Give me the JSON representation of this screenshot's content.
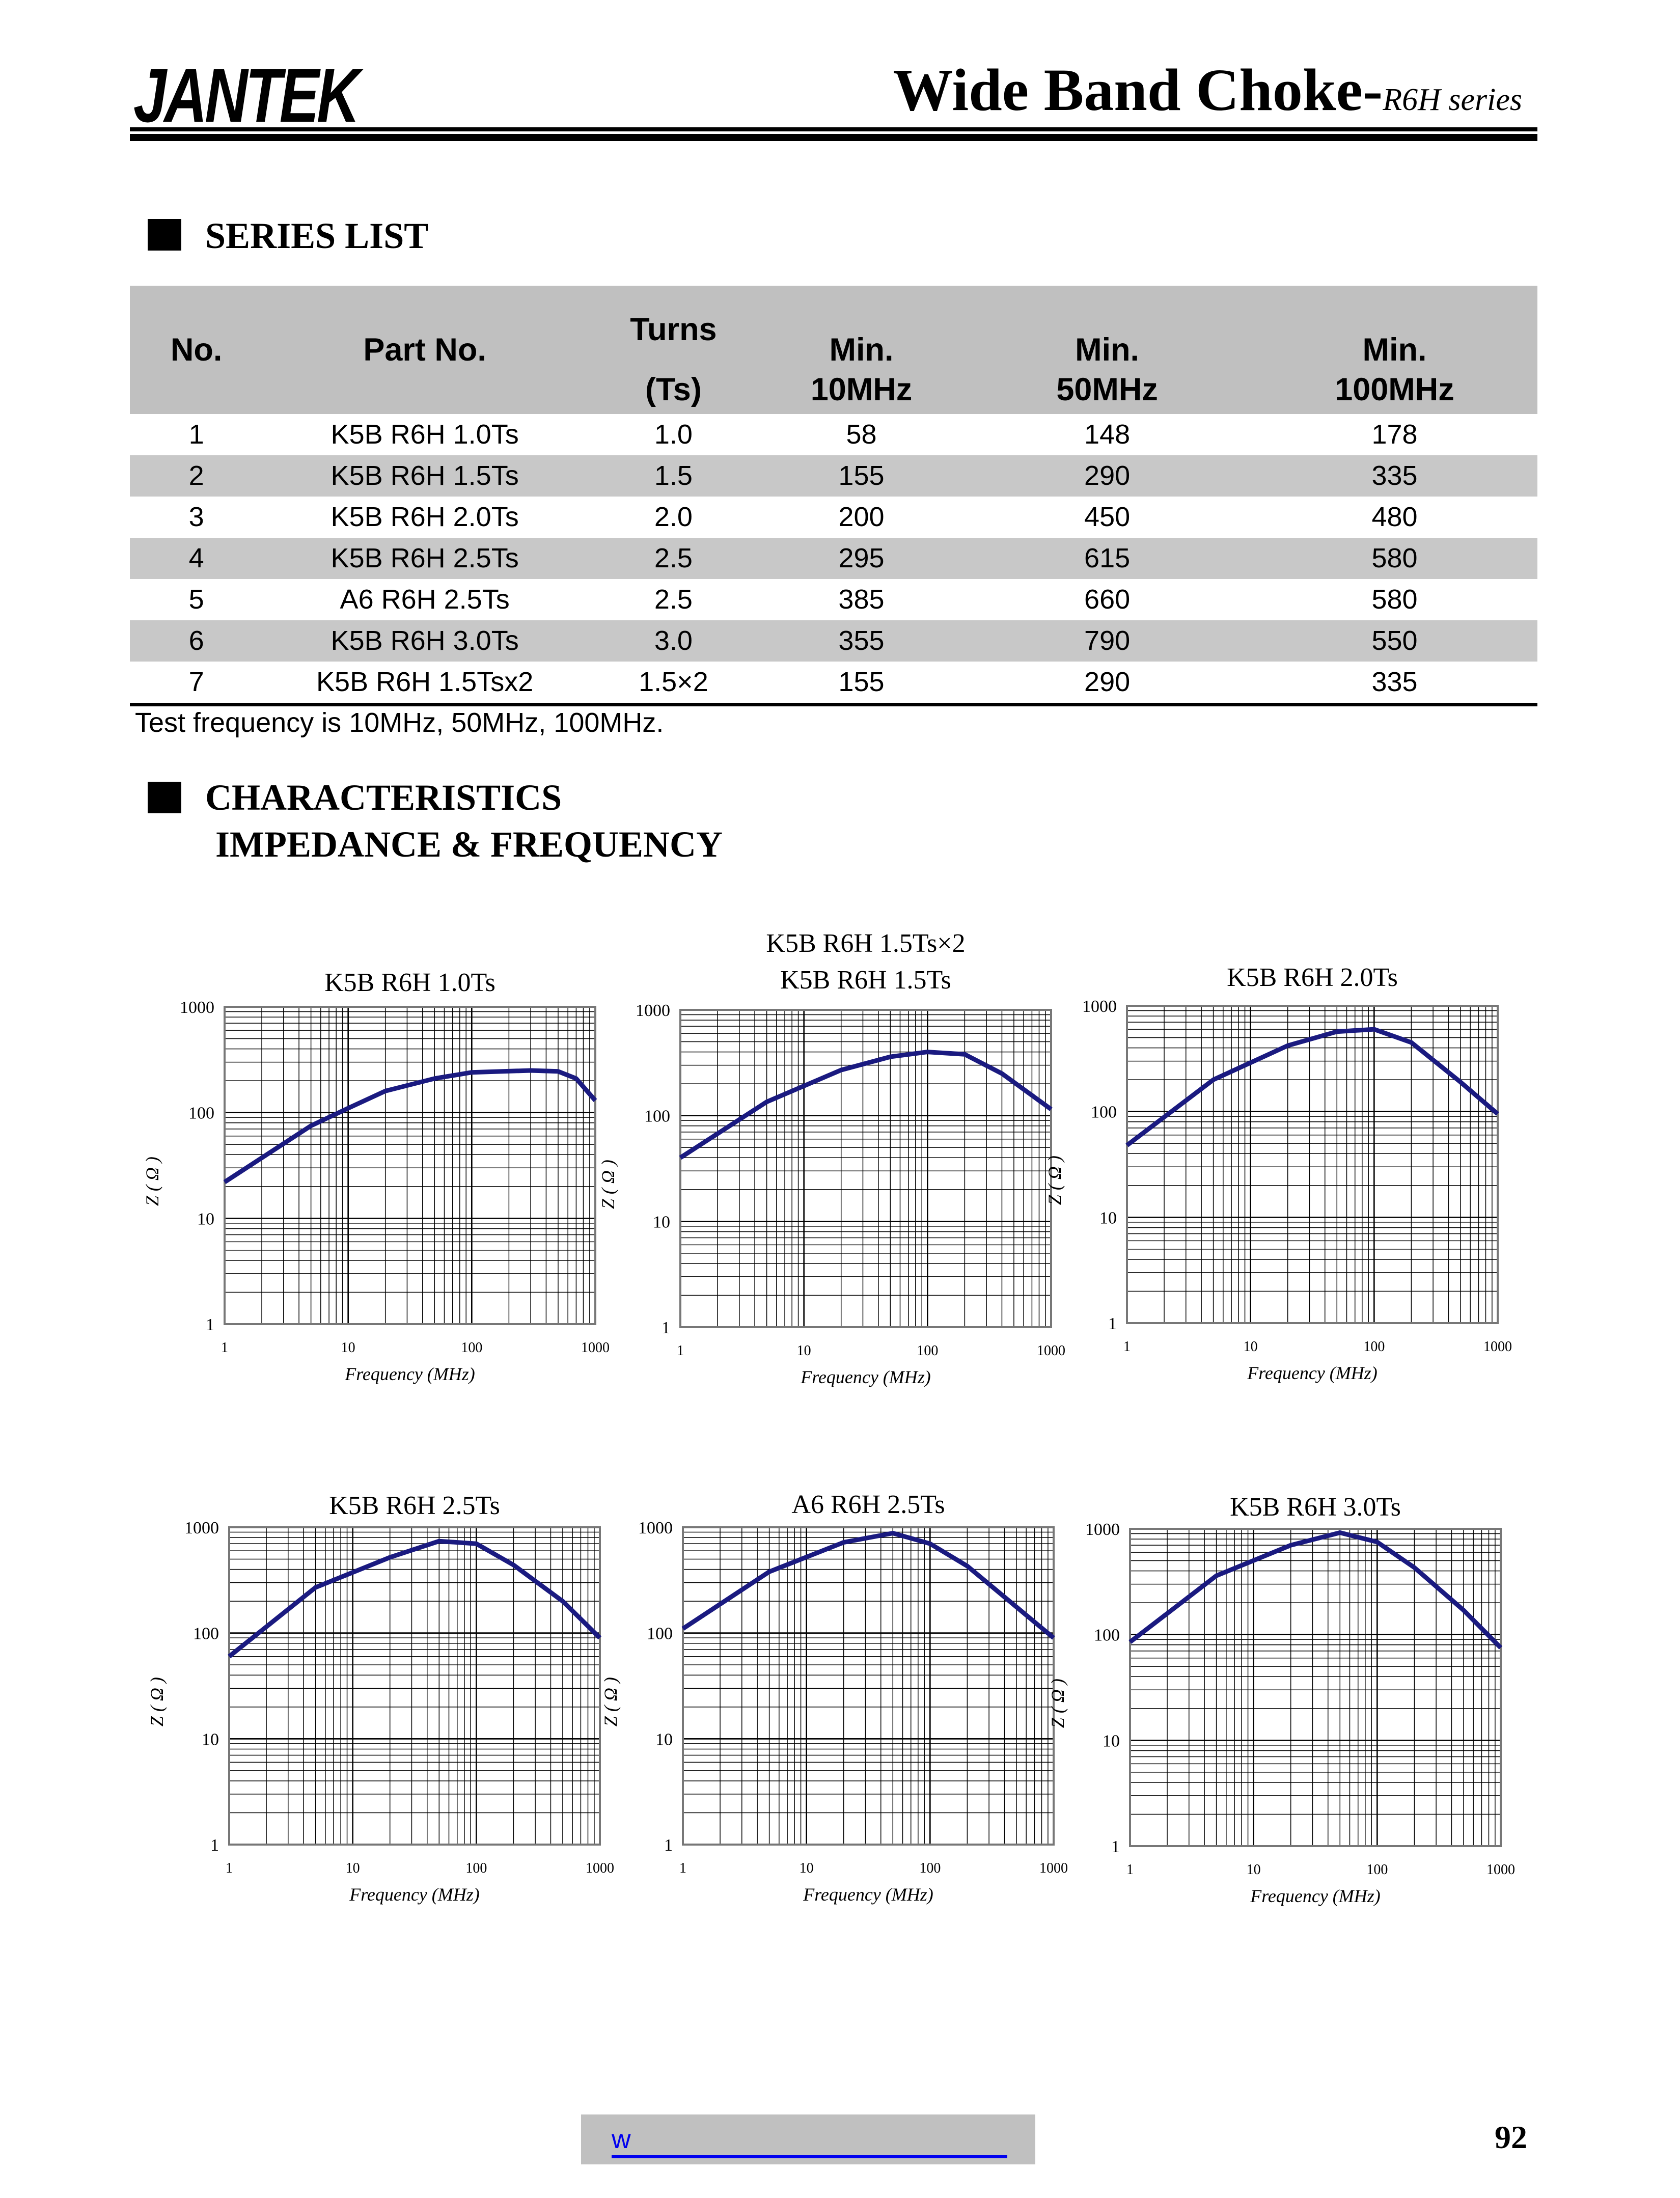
{
  "header": {
    "logo": "JANTEK",
    "title": "Wide Band Choke-",
    "subtitle": "R6H series"
  },
  "series_list": {
    "heading": "SERIES LIST",
    "columns": [
      {
        "l1": "No.",
        "l2": ""
      },
      {
        "l1": "Part No.",
        "l2": ""
      },
      {
        "l1": "Turns",
        "l2": "(Ts)"
      },
      {
        "l1": "Min.",
        "l2": "10MHz"
      },
      {
        "l1": "Min.",
        "l2": "50MHz"
      },
      {
        "l1": "Min.",
        "l2": "100MHz"
      }
    ],
    "rows": [
      [
        "1",
        "K5B R6H 1.0Ts",
        "1.0",
        "58",
        "148",
        "178"
      ],
      [
        "2",
        "K5B R6H 1.5Ts",
        "1.5",
        "155",
        "290",
        "335"
      ],
      [
        "3",
        "K5B R6H 2.0Ts",
        "2.0",
        "200",
        "450",
        "480"
      ],
      [
        "4",
        "K5B R6H 2.5Ts",
        "2.5",
        "295",
        "615",
        "580"
      ],
      [
        "5",
        "A6 R6H 2.5Ts",
        "2.5",
        "385",
        "660",
        "580"
      ],
      [
        "6",
        "K5B R6H 3.0Ts",
        "3.0",
        "355",
        "790",
        "550"
      ],
      [
        "7",
        "K5B R6H 1.5Tsx2",
        "1.5×2",
        "155",
        "290",
        "335"
      ]
    ],
    "note": "Test frequency is 10MHz, 50MHz, 100MHz."
  },
  "characteristics": {
    "heading": "CHARACTERISTICS",
    "subheading": "IMPEDANCE & FREQUENCY"
  },
  "colors": {
    "curve": "#1a1a80",
    "grid": "#000000",
    "table_header": "#c0c0c0",
    "link": "#0000ee"
  },
  "chart_data": [
    {
      "type": "line",
      "title": "K5B R6H 1.0Ts",
      "xlabel": "Frequency (MHz)",
      "ylabel": "Z ( Ω )",
      "xscale": "log",
      "yscale": "log",
      "xlim": [
        1,
        1000
      ],
      "ylim": [
        1,
        1000
      ],
      "xticks": [
        "1",
        "10",
        "100",
        "1000"
      ],
      "yticks": [
        "1",
        "10",
        "100",
        "1000"
      ],
      "grid": true,
      "x": [
        1,
        5,
        10,
        20,
        50,
        100,
        300,
        500,
        700,
        1000
      ],
      "y": [
        22,
        75,
        110,
        160,
        210,
        240,
        250,
        245,
        210,
        130
      ]
    },
    {
      "type": "line",
      "title": "K5B R6H 1.5Ts",
      "title_extra": "K5B R6H 1.5Ts×2",
      "xlabel": "Frequency (MHz)",
      "ylabel": "Z ( Ω )",
      "xscale": "log",
      "yscale": "log",
      "xlim": [
        1,
        1000
      ],
      "ylim": [
        1,
        1000
      ],
      "xticks": [
        "1",
        "10",
        "100",
        "1000"
      ],
      "yticks": [
        "1",
        "10",
        "100",
        "1000"
      ],
      "grid": true,
      "x": [
        1,
        5,
        20,
        50,
        100,
        200,
        400,
        1000
      ],
      "y": [
        40,
        135,
        270,
        360,
        400,
        380,
        250,
        115
      ]
    },
    {
      "type": "line",
      "title": "K5B R6H 2.0Ts",
      "xlabel": "Frequency (MHz)",
      "ylabel": "Z ( Ω )",
      "xscale": "log",
      "yscale": "log",
      "xlim": [
        1,
        1000
      ],
      "ylim": [
        1,
        1000
      ],
      "xticks": [
        "1",
        "10",
        "100",
        "1000"
      ],
      "yticks": [
        "1",
        "10",
        "100",
        "1000"
      ],
      "grid": true,
      "x": [
        1,
        5,
        20,
        50,
        100,
        200,
        500,
        1000
      ],
      "y": [
        48,
        200,
        420,
        570,
        600,
        450,
        190,
        95
      ]
    },
    {
      "type": "line",
      "title": "K5B R6H 2.5Ts",
      "xlabel": "Frequency (MHz)",
      "ylabel": "Z ( Ω )",
      "xscale": "log",
      "yscale": "log",
      "xlim": [
        1,
        1000
      ],
      "ylim": [
        1,
        1000
      ],
      "xticks": [
        "1",
        "10",
        "100",
        "1000"
      ],
      "yticks": [
        "1",
        "10",
        "100",
        "1000"
      ],
      "grid": true,
      "x": [
        1,
        5,
        20,
        50,
        100,
        200,
        500,
        1000
      ],
      "y": [
        60,
        270,
        520,
        740,
        700,
        440,
        200,
        90
      ]
    },
    {
      "type": "line",
      "title": "A6 R6H 2.5Ts",
      "xlabel": "Frequency (MHz)",
      "ylabel": "Z ( Ω )",
      "xscale": "log",
      "yscale": "log",
      "xlim": [
        1,
        1000
      ],
      "ylim": [
        1,
        1000
      ],
      "xticks": [
        "1",
        "10",
        "100",
        "1000"
      ],
      "yticks": [
        "1",
        "10",
        "100",
        "1000"
      ],
      "grid": true,
      "x": [
        1,
        5,
        20,
        50,
        100,
        200,
        1000
      ],
      "y": [
        110,
        380,
        720,
        880,
        700,
        430,
        90
      ]
    },
    {
      "type": "line",
      "title": "K5B R6H 3.0Ts",
      "xlabel": "Frequency (MHz)",
      "ylabel": "Z ( Ω )",
      "xscale": "log",
      "yscale": "log",
      "xlim": [
        1,
        1000
      ],
      "ylim": [
        1,
        1000
      ],
      "xticks": [
        "1",
        "10",
        "100",
        "1000"
      ],
      "yticks": [
        "1",
        "10",
        "100",
        "1000"
      ],
      "grid": true,
      "x": [
        1,
        5,
        20,
        50,
        100,
        200,
        500,
        1000
      ],
      "y": [
        85,
        360,
        700,
        920,
        750,
        430,
        170,
        75
      ]
    }
  ],
  "footer": {
    "link": "w",
    "page_number": "92"
  }
}
